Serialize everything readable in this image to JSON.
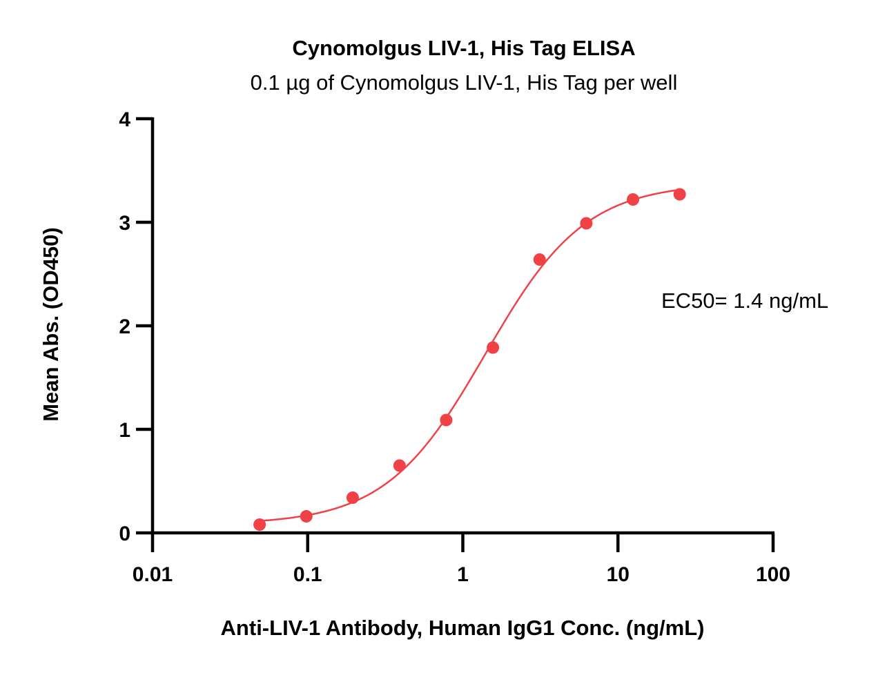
{
  "chart_data": {
    "type": "scatter",
    "title": "Cynomolgus LIV-1, His Tag ELISA",
    "subtitle": "0.1 µg of Cynomolgus LIV-1, His Tag per well",
    "xlabel": "Anti-LIV-1 Antibody, Human IgG1 Conc. (ng/mL)",
    "ylabel": "Mean Abs. (OD450)",
    "xscale": "log",
    "xlim": [
      0.01,
      100
    ],
    "ylim": [
      0,
      4
    ],
    "xticks": [
      "0.01",
      "0.1",
      "1",
      "10",
      "100"
    ],
    "yticks": [
      "0",
      "1",
      "2",
      "3",
      "4"
    ],
    "grid": false,
    "legend": "none",
    "color": "#ef4146",
    "series": [
      {
        "x": [
          0.049,
          0.098,
          0.195,
          0.391,
          0.781,
          1.563,
          3.125,
          6.25,
          12.5,
          25
        ],
        "y": [
          0.08,
          0.16,
          0.34,
          0.65,
          1.09,
          1.79,
          2.64,
          2.99,
          3.22,
          3.27
        ],
        "fit": {
          "model": "4PL",
          "bottom": 0.08,
          "top": 3.38,
          "ec50": 1.4,
          "hill": 1.35
        }
      }
    ],
    "annotations": [
      {
        "text": "EC50= 1.4 ng/mL"
      }
    ]
  }
}
